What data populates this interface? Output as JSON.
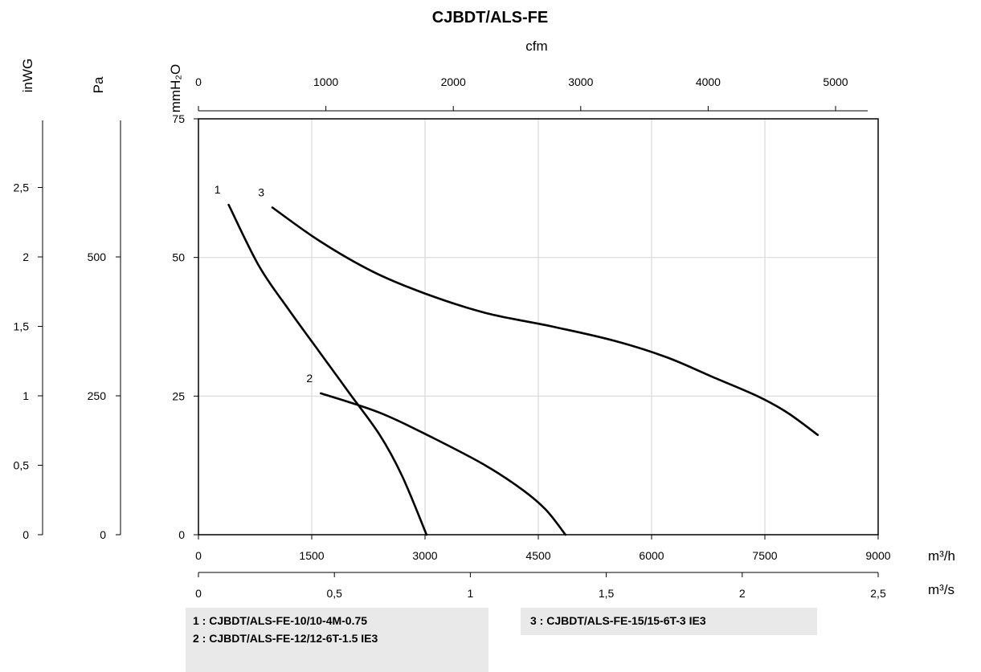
{
  "chart_data": {
    "type": "line",
    "title": "CJBDT/ALS-FE",
    "x_axis": {
      "label": "m³/h",
      "min": 0,
      "max": 9000,
      "ticks": [
        "0",
        "1500",
        "3000",
        "4500",
        "6000",
        "7500",
        "9000"
      ],
      "grid": true
    },
    "y_axis": {
      "label": "mmH₂O",
      "min": 0,
      "max": 75,
      "ticks": [
        "0",
        "25",
        "50",
        "75"
      ],
      "grid": true
    },
    "secondary_axes": {
      "cfm": {
        "label": "cfm",
        "ticks": [
          "0",
          "1000",
          "2000",
          "3000",
          "4000",
          "5000"
        ]
      },
      "m3s": {
        "label": "m³/s",
        "ticks": [
          "0",
          "0,5",
          "1",
          "1,5",
          "2",
          "2,5"
        ]
      },
      "pa": {
        "label": "Pa",
        "ticks": [
          "0",
          "250",
          "500"
        ]
      },
      "inwg": {
        "label": "inWG",
        "ticks": [
          "0",
          "0,5",
          "1",
          "1,5",
          "2",
          "2,5"
        ]
      }
    },
    "series": [
      {
        "name": "1",
        "legend": "1 : CJBDT/ALS-FE-10/10-4M-0.75",
        "points": [
          [
            400,
            59.5
          ],
          [
            800,
            48.5
          ],
          [
            1200,
            40.5
          ],
          [
            1600,
            33
          ],
          [
            2000,
            25.5
          ],
          [
            2400,
            18
          ],
          [
            2700,
            10.5
          ],
          [
            3020,
            0
          ]
        ]
      },
      {
        "name": "2",
        "legend": "2 : CJBDT/ALS-FE-12/12-6T-1.5 IE3",
        "points": [
          [
            1620,
            25.5
          ],
          [
            2400,
            22
          ],
          [
            3100,
            17.5
          ],
          [
            3800,
            12.5
          ],
          [
            4300,
            8
          ],
          [
            4600,
            4.5
          ],
          [
            4860,
            0
          ]
        ]
      },
      {
        "name": "3",
        "legend": "3 : CJBDT/ALS-FE-15/15-6T-3 IE3",
        "points": [
          [
            980,
            59
          ],
          [
            1600,
            53
          ],
          [
            2300,
            47.5
          ],
          [
            3000,
            43.5
          ],
          [
            3800,
            40
          ],
          [
            4700,
            37.5
          ],
          [
            5500,
            35
          ],
          [
            6200,
            32
          ],
          [
            6800,
            28.5
          ],
          [
            7400,
            25
          ],
          [
            7800,
            22
          ],
          [
            8200,
            18
          ]
        ]
      }
    ]
  }
}
